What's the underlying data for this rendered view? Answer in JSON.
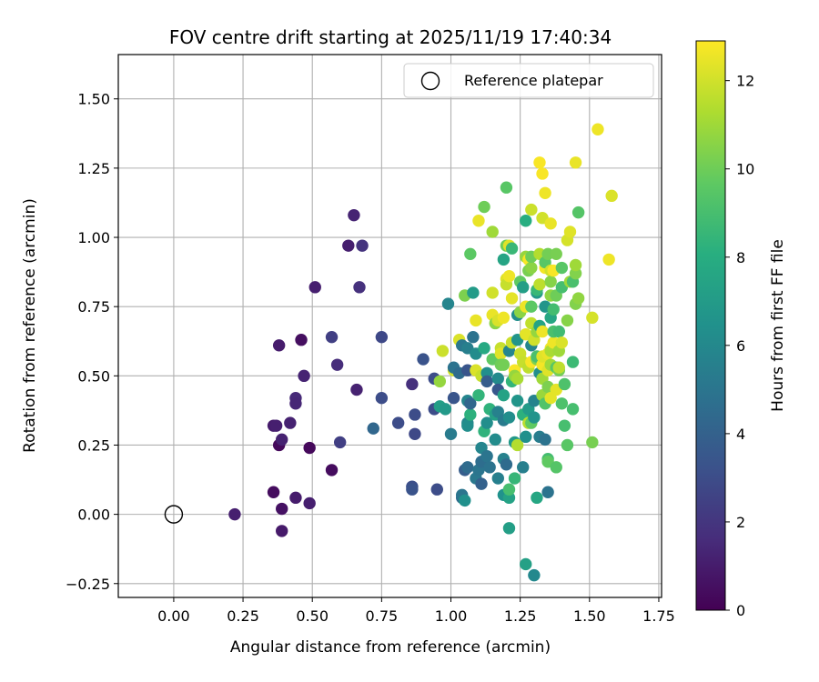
{
  "chart_data": {
    "type": "scatter",
    "title": "FOV centre drift starting at 2025/11/19 17:40:34",
    "xlabel": "Angular distance from reference (arcmin)",
    "ylabel": "Rotation from reference (arcmin)",
    "xlim": [
      -0.2,
      1.76
    ],
    "ylim": [
      -0.3,
      1.66
    ],
    "xticks": [
      0.0,
      0.25,
      0.5,
      0.75,
      1.0,
      1.25,
      1.5,
      1.75
    ],
    "xtick_labels": [
      "0.00",
      "0.25",
      "0.50",
      "0.75",
      "1.00",
      "1.25",
      "1.50",
      "1.75"
    ],
    "yticks": [
      -0.25,
      0.0,
      0.25,
      0.5,
      0.75,
      1.0,
      1.25,
      1.5
    ],
    "ytick_labels": [
      "−0.25",
      "0.00",
      "0.25",
      "0.50",
      "0.75",
      "1.00",
      "1.25",
      "1.50"
    ],
    "grid": true,
    "legend": {
      "placement": "top-right",
      "entries": [
        "Reference platepar"
      ]
    },
    "reference_point": {
      "x": 0.0,
      "y": 0.0
    },
    "colorbar": {
      "label": "Hours from first FF file",
      "colormap": "viridis",
      "range": [
        0,
        12.9
      ],
      "ticks": [
        0,
        2,
        4,
        6,
        8,
        10,
        12
      ],
      "tick_labels": [
        "0",
        "2",
        "4",
        "6",
        "8",
        "10",
        "12"
      ]
    },
    "points": [
      [
        0.22,
        0.0,
        1.1
      ],
      [
        0.36,
        0.32,
        1.0
      ],
      [
        0.37,
        0.32,
        1.1
      ],
      [
        0.36,
        0.08,
        0.4
      ],
      [
        0.38,
        0.25,
        0.3
      ],
      [
        0.38,
        0.61,
        1.0
      ],
      [
        0.39,
        0.27,
        1.2
      ],
      [
        0.39,
        0.02,
        0.6
      ],
      [
        0.39,
        -0.06,
        0.9
      ],
      [
        0.42,
        0.33,
        1.2
      ],
      [
        0.44,
        0.42,
        1.5
      ],
      [
        0.44,
        0.4,
        1.4
      ],
      [
        0.44,
        0.06,
        1.0
      ],
      [
        0.46,
        0.63,
        0.5
      ],
      [
        0.47,
        0.5,
        1.3
      ],
      [
        0.49,
        0.24,
        0.3
      ],
      [
        0.49,
        0.04,
        1.1
      ],
      [
        0.51,
        0.82,
        1.1
      ],
      [
        0.57,
        0.16,
        0.4
      ],
      [
        0.57,
        0.64,
        2.4
      ],
      [
        0.59,
        0.54,
        1.6
      ],
      [
        0.6,
        0.26,
        2.4
      ],
      [
        0.63,
        0.97,
        1.1
      ],
      [
        0.65,
        1.08,
        1.3
      ],
      [
        0.66,
        0.45,
        1.2
      ],
      [
        0.67,
        0.82,
        1.8
      ],
      [
        0.68,
        0.97,
        1.9
      ],
      [
        0.72,
        0.31,
        4.3
      ],
      [
        0.75,
        0.64,
        2.8
      ],
      [
        0.75,
        0.42,
        3.0
      ],
      [
        0.81,
        0.33,
        3.0
      ],
      [
        0.86,
        0.47,
        1.8
      ],
      [
        0.86,
        0.1,
        3.1
      ],
      [
        0.86,
        0.09,
        3.3
      ],
      [
        0.87,
        0.29,
        2.8
      ],
      [
        0.87,
        0.36,
        3.0
      ],
      [
        0.9,
        0.56,
        3.3
      ],
      [
        0.94,
        0.49,
        3.0
      ],
      [
        0.94,
        0.38,
        3.0
      ],
      [
        0.95,
        0.09,
        3.0
      ],
      [
        0.96,
        0.48,
        10.8
      ],
      [
        0.96,
        0.39,
        7.2
      ],
      [
        0.97,
        0.59,
        11.9
      ],
      [
        0.98,
        0.38,
        6.9
      ],
      [
        0.99,
        0.76,
        5.8
      ],
      [
        1.0,
        0.29,
        5.3
      ],
      [
        1.01,
        0.52,
        12.0
      ],
      [
        1.01,
        0.53,
        4.9
      ],
      [
        1.01,
        0.42,
        3.4
      ],
      [
        1.03,
        0.63,
        12.2
      ],
      [
        1.03,
        0.51,
        4.5
      ],
      [
        1.04,
        0.61,
        5.1
      ],
      [
        1.04,
        0.06,
        4.5
      ],
      [
        1.04,
        0.07,
        5.0
      ],
      [
        1.05,
        0.05,
        6.4
      ],
      [
        1.05,
        0.16,
        3.8
      ],
      [
        1.05,
        0.79,
        10.3
      ],
      [
        1.06,
        0.52,
        3.4
      ],
      [
        1.06,
        0.41,
        5.8
      ],
      [
        1.06,
        0.33,
        5.9
      ],
      [
        1.06,
        0.32,
        6.3
      ],
      [
        1.06,
        0.17,
        4.5
      ],
      [
        1.06,
        0.6,
        5.5
      ],
      [
        1.07,
        0.94,
        9.6
      ],
      [
        1.07,
        0.36,
        8.2
      ],
      [
        1.07,
        0.4,
        4.3
      ],
      [
        1.08,
        0.64,
        4.9
      ],
      [
        1.08,
        0.8,
        7.0
      ],
      [
        1.09,
        0.13,
        5.2
      ],
      [
        1.09,
        0.7,
        12.5
      ],
      [
        1.09,
        0.52,
        12.2
      ],
      [
        1.09,
        0.58,
        6.2
      ],
      [
        1.1,
        1.06,
        12.5
      ],
      [
        1.1,
        0.43,
        8.4
      ],
      [
        1.1,
        0.16,
        5.0
      ],
      [
        1.11,
        0.5,
        11.8
      ],
      [
        1.11,
        0.19,
        4.6
      ],
      [
        1.11,
        0.11,
        4.0
      ],
      [
        1.11,
        0.24,
        5.8
      ],
      [
        1.12,
        0.3,
        8.3
      ],
      [
        1.12,
        0.6,
        7.8
      ],
      [
        1.12,
        1.11,
        10.0
      ],
      [
        1.13,
        0.51,
        6.3
      ],
      [
        1.13,
        0.48,
        3.8
      ],
      [
        1.13,
        0.21,
        5.0
      ],
      [
        1.13,
        0.33,
        6.3
      ],
      [
        1.14,
        0.17,
        4.9
      ],
      [
        1.14,
        0.38,
        8.3
      ],
      [
        1.15,
        1.02,
        11.0
      ],
      [
        1.15,
        0.8,
        12.0
      ],
      [
        1.15,
        0.72,
        12.5
      ],
      [
        1.15,
        0.56,
        9.7
      ],
      [
        1.16,
        0.36,
        7.3
      ],
      [
        1.16,
        0.69,
        10.6
      ],
      [
        1.16,
        0.27,
        6.2
      ],
      [
        1.17,
        0.13,
        5.5
      ],
      [
        1.17,
        0.37,
        5.6
      ],
      [
        1.17,
        0.7,
        12.2
      ],
      [
        1.17,
        0.49,
        6.1
      ],
      [
        1.17,
        0.45,
        3.5
      ],
      [
        1.18,
        0.6,
        11.8
      ],
      [
        1.18,
        0.58,
        12.3
      ],
      [
        1.18,
        0.54,
        10.0
      ],
      [
        1.19,
        0.34,
        5.3
      ],
      [
        1.19,
        0.92,
        7.5
      ],
      [
        1.19,
        0.71,
        12.6
      ],
      [
        1.19,
        0.43,
        7.4
      ],
      [
        1.19,
        0.2,
        5.6
      ],
      [
        1.19,
        0.07,
        6.5
      ],
      [
        1.19,
        0.54,
        10.1
      ],
      [
        1.2,
        0.85,
        12.3
      ],
      [
        1.2,
        0.83,
        11.8
      ],
      [
        1.2,
        0.97,
        10.0
      ],
      [
        1.2,
        1.18,
        9.5
      ],
      [
        1.2,
        0.18,
        4.5
      ],
      [
        1.21,
        0.35,
        6.3
      ],
      [
        1.21,
        0.97,
        12.3
      ],
      [
        1.21,
        0.06,
        7.4
      ],
      [
        1.21,
        -0.05,
        7.2
      ],
      [
        1.21,
        0.09,
        9.0
      ],
      [
        1.21,
        0.59,
        5.9
      ],
      [
        1.21,
        0.86,
        12.6
      ],
      [
        1.22,
        0.62,
        11.9
      ],
      [
        1.22,
        0.96,
        8.6
      ],
      [
        1.22,
        0.78,
        12.4
      ],
      [
        1.22,
        0.48,
        8.4
      ],
      [
        1.23,
        0.13,
        8.5
      ],
      [
        1.23,
        0.26,
        6.9
      ],
      [
        1.23,
        0.52,
        12.8
      ],
      [
        1.23,
        0.5,
        10.8
      ],
      [
        1.24,
        0.72,
        6.3
      ],
      [
        1.24,
        0.63,
        6.7
      ],
      [
        1.24,
        0.49,
        11.2
      ],
      [
        1.24,
        0.41,
        6.7
      ],
      [
        1.24,
        0.25,
        11.4
      ],
      [
        1.25,
        0.58,
        11.9
      ],
      [
        1.25,
        0.84,
        9.7
      ],
      [
        1.25,
        0.73,
        10.6
      ],
      [
        1.26,
        0.82,
        7.2
      ],
      [
        1.26,
        0.55,
        11.8
      ],
      [
        1.26,
        0.36,
        8.2
      ],
      [
        1.26,
        0.17,
        5.5
      ],
      [
        1.27,
        0.65,
        12.4
      ],
      [
        1.27,
        0.75,
        12.6
      ],
      [
        1.27,
        0.28,
        6.4
      ],
      [
        1.27,
        0.93,
        10.8
      ],
      [
        1.27,
        -0.18,
        7.3
      ],
      [
        1.27,
        1.06,
        8.0
      ],
      [
        1.28,
        0.88,
        10.2
      ],
      [
        1.28,
        0.92,
        12.8
      ],
      [
        1.28,
        0.38,
        7.0
      ],
      [
        1.28,
        0.33,
        11.5
      ],
      [
        1.28,
        0.53,
        11.6
      ],
      [
        1.29,
        0.61,
        5.8
      ],
      [
        1.29,
        0.75,
        9.6
      ],
      [
        1.29,
        0.33,
        9.7
      ],
      [
        1.29,
        0.89,
        10.6
      ],
      [
        1.29,
        1.1,
        11.9
      ],
      [
        1.29,
        0.93,
        10.0
      ],
      [
        1.29,
        0.55,
        12.8
      ],
      [
        1.29,
        0.69,
        11.7
      ],
      [
        1.3,
        0.63,
        12.0
      ],
      [
        1.3,
        -0.22,
        6.0
      ],
      [
        1.3,
        0.35,
        6.6
      ],
      [
        1.3,
        0.41,
        5.7
      ],
      [
        1.31,
        0.56,
        10.3
      ],
      [
        1.31,
        0.8,
        6.8
      ],
      [
        1.31,
        0.57,
        9.1
      ],
      [
        1.31,
        0.66,
        10.8
      ],
      [
        1.31,
        0.06,
        7.6
      ],
      [
        1.31,
        0.81,
        8.6
      ],
      [
        1.32,
        0.83,
        11.6
      ],
      [
        1.32,
        1.27,
        12.8
      ],
      [
        1.32,
        0.68,
        7.5
      ],
      [
        1.32,
        0.51,
        6.3
      ],
      [
        1.32,
        0.28,
        5.4
      ],
      [
        1.32,
        0.94,
        11.4
      ],
      [
        1.33,
        1.23,
        12.8
      ],
      [
        1.33,
        1.07,
        12.0
      ],
      [
        1.33,
        0.66,
        12.6
      ],
      [
        1.33,
        0.43,
        10.9
      ],
      [
        1.33,
        0.49,
        11.0
      ],
      [
        1.33,
        0.54,
        12.7
      ],
      [
        1.33,
        0.57,
        12.3
      ],
      [
        1.34,
        0.89,
        12.7
      ],
      [
        1.34,
        0.27,
        4.9
      ],
      [
        1.34,
        1.16,
        12.6
      ],
      [
        1.34,
        0.91,
        9.5
      ],
      [
        1.34,
        0.75,
        6.7
      ],
      [
        1.34,
        0.4,
        9.3
      ],
      [
        1.35,
        0.2,
        8.9
      ],
      [
        1.35,
        0.08,
        4.9
      ],
      [
        1.35,
        0.58,
        12.5
      ],
      [
        1.35,
        0.94,
        10.1
      ],
      [
        1.35,
        0.46,
        10.3
      ],
      [
        1.35,
        0.19,
        9.7
      ],
      [
        1.35,
        0.52,
        12.3
      ],
      [
        1.36,
        0.88,
        12.0
      ],
      [
        1.36,
        0.71,
        7.6
      ],
      [
        1.36,
        0.84,
        10.5
      ],
      [
        1.36,
        0.6,
        12.6
      ],
      [
        1.36,
        0.42,
        12.4
      ],
      [
        1.36,
        0.59,
        11.2
      ],
      [
        1.36,
        1.05,
        12.5
      ],
      [
        1.36,
        0.54,
        11.0
      ],
      [
        1.36,
        0.79,
        10.7
      ],
      [
        1.37,
        0.88,
        12.8
      ],
      [
        1.37,
        0.62,
        12.6
      ],
      [
        1.37,
        0.74,
        8.9
      ],
      [
        1.37,
        0.66,
        9.1
      ],
      [
        1.38,
        0.94,
        10.2
      ],
      [
        1.38,
        0.79,
        10.0
      ],
      [
        1.38,
        0.17,
        9.4
      ],
      [
        1.38,
        0.45,
        12.4
      ],
      [
        1.38,
        0.53,
        9.5
      ],
      [
        1.39,
        0.52,
        10.1
      ],
      [
        1.39,
        0.59,
        11.0
      ],
      [
        1.39,
        0.66,
        8.8
      ],
      [
        1.39,
        0.53,
        11.6
      ],
      [
        1.4,
        0.89,
        9.5
      ],
      [
        1.4,
        0.62,
        12.2
      ],
      [
        1.4,
        0.4,
        9.2
      ],
      [
        1.4,
        0.82,
        9.0
      ],
      [
        1.41,
        0.32,
        9.0
      ],
      [
        1.41,
        0.47,
        9.2
      ],
      [
        1.42,
        0.99,
        12.1
      ],
      [
        1.42,
        0.25,
        9.5
      ],
      [
        1.42,
        0.7,
        10.5
      ],
      [
        1.43,
        0.84,
        11.0
      ],
      [
        1.43,
        1.02,
        12.3
      ],
      [
        1.44,
        0.84,
        9.1
      ],
      [
        1.44,
        0.38,
        9.0
      ],
      [
        1.44,
        0.55,
        8.7
      ],
      [
        1.45,
        0.87,
        10.4
      ],
      [
        1.45,
        0.9,
        11.0
      ],
      [
        1.45,
        1.27,
        12.5
      ],
      [
        1.45,
        0.76,
        10.4
      ],
      [
        1.46,
        0.78,
        10.7
      ],
      [
        1.46,
        1.09,
        9.4
      ],
      [
        1.51,
        0.71,
        12.1
      ],
      [
        1.51,
        0.26,
        10.2
      ],
      [
        1.53,
        1.39,
        12.6
      ],
      [
        1.57,
        0.92,
        12.6
      ],
      [
        1.58,
        1.15,
        12.2
      ]
    ]
  }
}
